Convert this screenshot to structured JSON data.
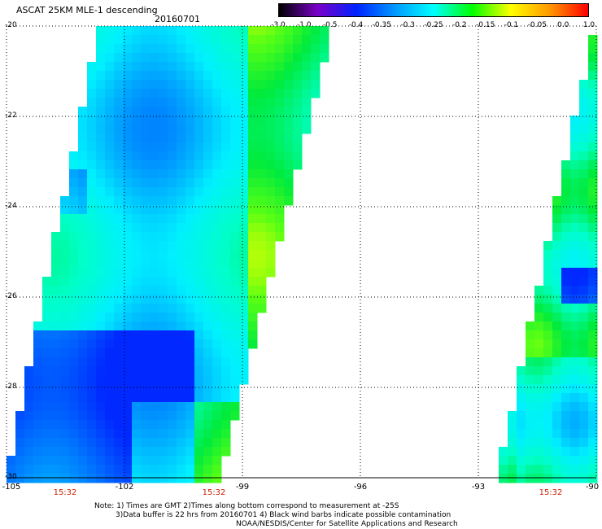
{
  "header": {
    "title": "ASCAT 25KM MLE-1 descending",
    "date": "20160701"
  },
  "colorbar": {
    "labels": [
      "-3.0",
      "-1.0",
      "-0.5",
      "-0.4",
      "-0.35",
      "-0.3",
      "-0.25",
      "-0.2",
      "-0.15",
      "-0.1",
      "-0.05",
      "0.0",
      "1.0"
    ],
    "colors": [
      "#000000",
      "#7a00c8",
      "#0022ff",
      "#0099ff",
      "#00ffff",
      "#00ff00",
      "#ffff00",
      "#ff9900",
      "#ff0000"
    ]
  },
  "axes": {
    "lat_labels": [
      "-20",
      "-22",
      "-24",
      "-26",
      "-28",
      "-30"
    ],
    "lon_labels": [
      "-105",
      "-102",
      "-99",
      "-96",
      "-93",
      "-90"
    ],
    "times": [
      "15:32",
      "15:32",
      "15:32"
    ]
  },
  "notes": {
    "line1": "Note: 1) Times are GMT 2)Times along bottom correspond to measurement at -25S",
    "line2": "3)Data buffer is 22 hrs from 20160701 4) Black wind barbs indicate possible contamination",
    "line3": "NOAA/NESDIS/Center for Satellite Applications and Research"
  }
}
